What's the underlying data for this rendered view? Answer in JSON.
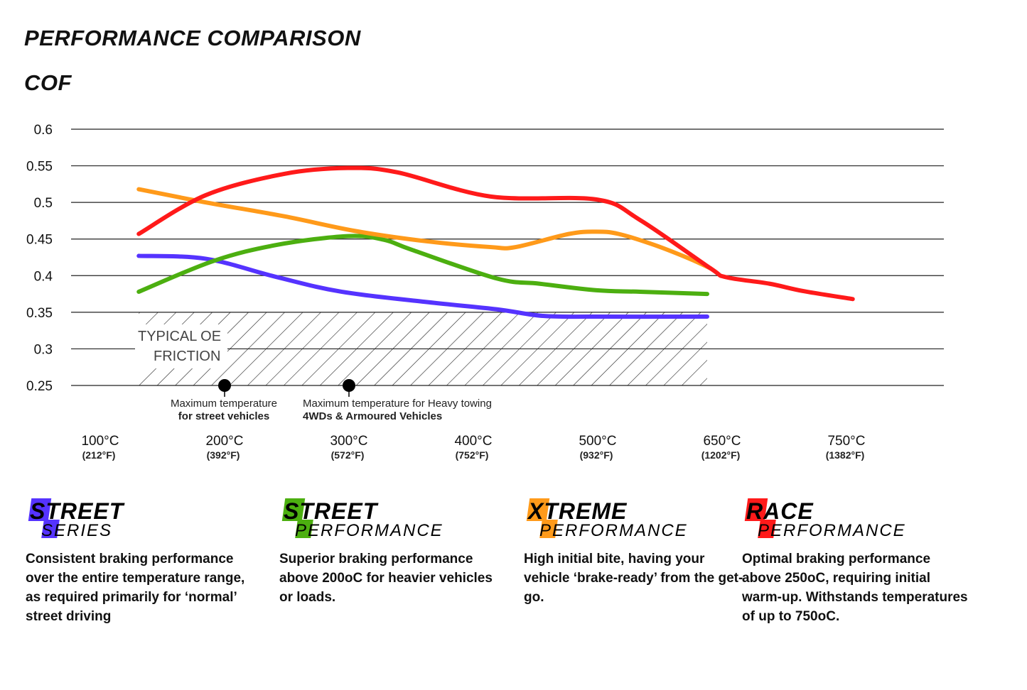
{
  "title": "PERFORMANCE COMPARISON",
  "chart_data": {
    "type": "line",
    "title": "PERFORMANCE COMPARISON",
    "ylabel": "COF",
    "xlabel": "",
    "ylim": [
      0.25,
      0.6
    ],
    "yticks": [
      "0.6",
      "0.55",
      "0.5",
      "0.45",
      "0.4",
      "0.35",
      "0.3",
      "0.25"
    ],
    "ytick_values": [
      0.6,
      0.55,
      0.5,
      0.45,
      0.4,
      0.35,
      0.3,
      0.25
    ],
    "xticks": [
      {
        "c": "100°C",
        "f": "(212°F)",
        "value": 100
      },
      {
        "c": "200°C",
        "f": "(392°F)",
        "value": 200
      },
      {
        "c": "300°C",
        "f": "(572°F)",
        "value": 300
      },
      {
        "c": "400°C",
        "f": "(752°F)",
        "value": 400
      },
      {
        "c": "500°C",
        "f": "(932°F)",
        "value": 500
      },
      {
        "c": "650°C",
        "f": "(1202°F)",
        "value": 650
      },
      {
        "c": "750°C",
        "f": "(1382°F)",
        "value": 750
      }
    ],
    "grid": "horizontal",
    "series": [
      {
        "name": "Street Series",
        "color": "#5533ff",
        "x": [
          131,
          185,
          242,
          294,
          362,
          419,
          456,
          499,
          632
        ],
        "y": [
          0.427,
          0.423,
          0.398,
          0.378,
          0.364,
          0.354,
          0.345,
          0.344,
          0.344
        ]
      },
      {
        "name": "Street Performance",
        "color": "#4caf10",
        "x": [
          131,
          191,
          242,
          299,
          328,
          351,
          419,
          453,
          499,
          551,
          632
        ],
        "y": [
          0.378,
          0.42,
          0.442,
          0.454,
          0.449,
          0.435,
          0.396,
          0.389,
          0.38,
          0.378,
          0.375
        ]
      },
      {
        "name": "Xtreme Performance",
        "color": "#ff9a1a",
        "x": [
          131,
          185,
          248,
          305,
          362,
          414,
          434,
          477,
          499,
          525,
          568,
          611,
          636
        ],
        "y": [
          0.518,
          0.5,
          0.481,
          0.461,
          0.447,
          0.439,
          0.439,
          0.457,
          0.46,
          0.457,
          0.442,
          0.423,
          0.41
        ]
      },
      {
        "name": "Race Performance",
        "color": "#ff1a1a",
        "x": [
          131,
          185,
          248,
          299,
          339,
          414,
          499,
          551,
          636,
          653,
          688,
          715,
          755
        ],
        "y": [
          0.457,
          0.51,
          0.539,
          0.547,
          0.541,
          0.508,
          0.504,
          0.476,
          0.41,
          0.398,
          0.389,
          0.379,
          0.368
        ]
      }
    ],
    "region": {
      "label_line1": "TYPICAL OE",
      "label_line2": "FRICTION",
      "x": [
        131,
        632
      ],
      "y": [
        0.25,
        0.35
      ]
    },
    "annotations": [
      {
        "x": 200,
        "y": 0.25,
        "line1": "Maximum temperature",
        "line2": "for street vehicles"
      },
      {
        "x": 300,
        "y": 0.25,
        "line1": "Maximum temperature for Heavy towing",
        "line2": "4WDs & Armoured Vehicles"
      }
    ]
  },
  "brands": [
    {
      "first1": "S",
      "rest1": "TREET",
      "first2": "S",
      "rest2": "ERIES",
      "color": "#5533ff",
      "desc": "Consistent braking performance over the entire temperature range, as required primarily for ‘normal’ street driving"
    },
    {
      "first1": "S",
      "rest1": "TREET",
      "first2": "P",
      "rest2": "ERFORMANCE",
      "color": "#4caf10",
      "desc": "Superior braking performance above 200oC for heavier vehicles or loads."
    },
    {
      "first1": "X",
      "rest1": "TREME",
      "first2": "P",
      "rest2": "ERFORMANCE",
      "color": "#ff9a1a",
      "desc": "High initial bite, having your vehicle ‘brake-ready’ from the get-go."
    },
    {
      "first1": "R",
      "rest1": "ACE",
      "first2": "P",
      "rest2": "ERFORMANCE",
      "color": "#ff1a1a",
      "desc": "Optimal braking performance above 250oC, requiring initial warm-up. Withstands temperatures of up to 750oC."
    }
  ]
}
